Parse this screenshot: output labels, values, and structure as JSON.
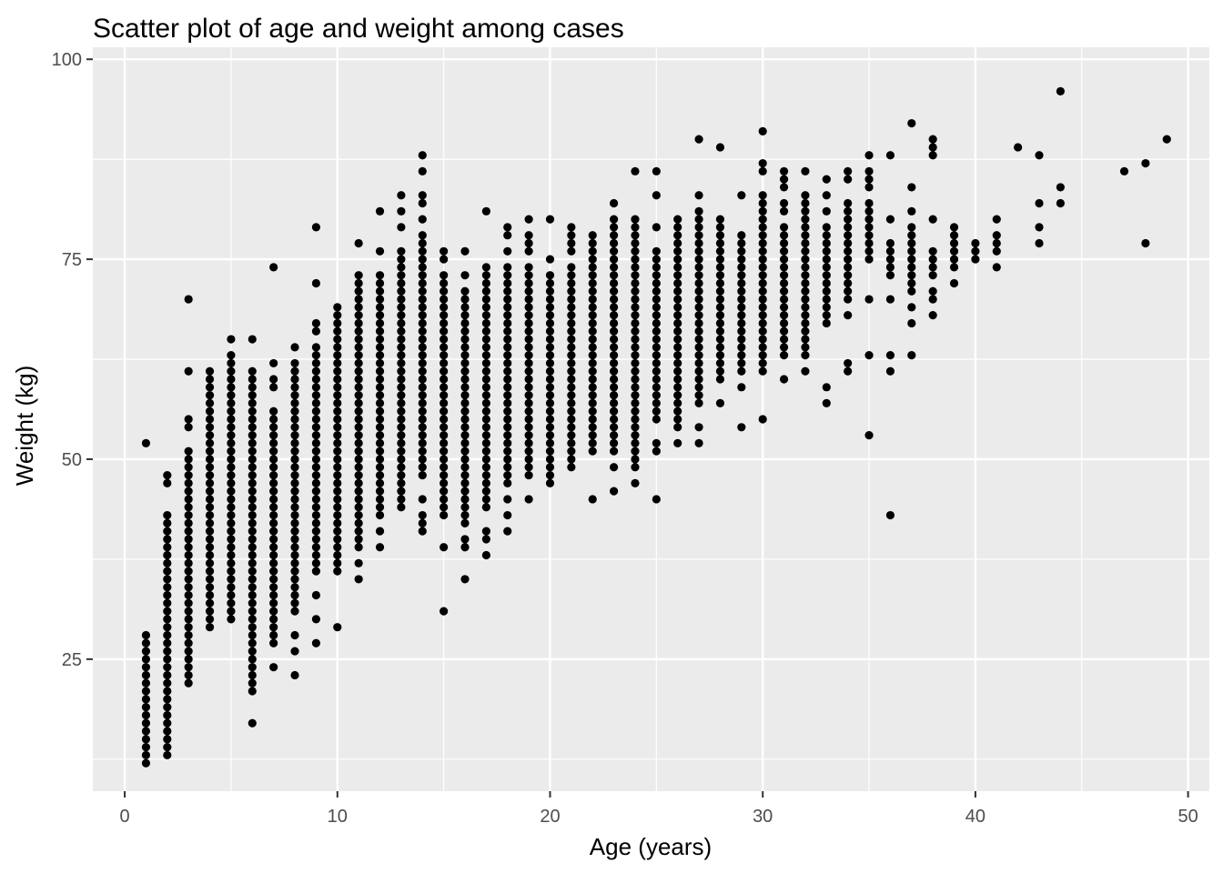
{
  "chart_data": {
    "type": "scatter",
    "title": "Scatter plot of age and weight among cases",
    "xlabel": "Age (years)",
    "ylabel": "Weight (kg)",
    "xlim": [
      -1.5,
      51
    ],
    "ylim": [
      8.5,
      101.5
    ],
    "x_ticks": [
      0,
      10,
      20,
      30,
      40,
      50
    ],
    "y_ticks": [
      25,
      50,
      75,
      100
    ],
    "x_tick_labels": [
      "0",
      "10",
      "20",
      "30",
      "40",
      "50"
    ],
    "y_tick_labels": [
      "25",
      "50",
      "75",
      "100"
    ],
    "grid": true,
    "legend": "none",
    "colors": {
      "panel": "#ebebeb",
      "grid": "#ffffff",
      "point": "#000000",
      "tick": "#4d4d4d"
    },
    "columns": [
      {
        "x": 1,
        "min": 12,
        "max": 28,
        "extra": [
          52
        ]
      },
      {
        "x": 2,
        "min": 13,
        "max": 43,
        "extra": [
          47,
          48
        ]
      },
      {
        "x": 3,
        "min": 22,
        "max": 51,
        "extra": [
          54,
          55,
          61,
          70
        ]
      },
      {
        "x": 4,
        "min": 29,
        "max": 61,
        "extra": []
      },
      {
        "x": 5,
        "min": 30,
        "max": 63,
        "extra": [
          65
        ]
      },
      {
        "x": 6,
        "min": 21,
        "max": 61,
        "extra": [
          17,
          65
        ]
      },
      {
        "x": 7,
        "min": 27,
        "max": 56,
        "extra": [
          24,
          59,
          60,
          62,
          74
        ]
      },
      {
        "x": 8,
        "min": 31,
        "max": 62,
        "extra": [
          23,
          26,
          28,
          64
        ]
      },
      {
        "x": 9,
        "min": 36,
        "max": 64,
        "extra": [
          27,
          30,
          33,
          66,
          67,
          72,
          79
        ]
      },
      {
        "x": 10,
        "min": 36,
        "max": 69,
        "extra": [
          29
        ]
      },
      {
        "x": 11,
        "min": 39,
        "max": 73,
        "extra": [
          35,
          37,
          77
        ]
      },
      {
        "x": 12,
        "min": 43,
        "max": 73,
        "extra": [
          39,
          41,
          76,
          81
        ]
      },
      {
        "x": 13,
        "min": 44,
        "max": 76,
        "extra": [
          79,
          81,
          83
        ]
      },
      {
        "x": 14,
        "min": 48,
        "max": 78,
        "extra": [
          41,
          42,
          43,
          45,
          80,
          82,
          83,
          86,
          88
        ]
      },
      {
        "x": 15,
        "min": 43,
        "max": 73,
        "extra": [
          31,
          39,
          75,
          76
        ]
      },
      {
        "x": 16,
        "min": 42,
        "max": 71,
        "extra": [
          35,
          39,
          40,
          73,
          76
        ]
      },
      {
        "x": 17,
        "min": 44,
        "max": 74,
        "extra": [
          38,
          40,
          41,
          81
        ]
      },
      {
        "x": 18,
        "min": 48,
        "max": 74,
        "extra": [
          41,
          43,
          45,
          47,
          76,
          78,
          79
        ]
      },
      {
        "x": 19,
        "min": 48,
        "max": 74,
        "extra": [
          45,
          76,
          77,
          78,
          80
        ]
      },
      {
        "x": 20,
        "min": 47,
        "max": 73,
        "extra": [
          75,
          80
        ]
      },
      {
        "x": 21,
        "min": 49,
        "max": 74,
        "extra": [
          76,
          77,
          78,
          79
        ]
      },
      {
        "x": 22,
        "min": 51,
        "max": 76,
        "extra": [
          45,
          77,
          78
        ]
      },
      {
        "x": 23,
        "min": 51,
        "max": 76,
        "extra": [
          46,
          49,
          77,
          78,
          79,
          80,
          82
        ]
      },
      {
        "x": 24,
        "min": 49,
        "max": 80,
        "extra": [
          47,
          86
        ]
      },
      {
        "x": 25,
        "min": 55,
        "max": 76,
        "extra": [
          45,
          51,
          52,
          79,
          83,
          86
        ]
      },
      {
        "x": 26,
        "min": 54,
        "max": 80,
        "extra": [
          52
        ]
      },
      {
        "x": 27,
        "min": 57,
        "max": 81,
        "extra": [
          52,
          54,
          83,
          90
        ]
      },
      {
        "x": 28,
        "min": 60,
        "max": 80,
        "extra": [
          57,
          89
        ]
      },
      {
        "x": 29,
        "min": 61,
        "max": 78,
        "extra": [
          54,
          59,
          83
        ]
      },
      {
        "x": 30,
        "min": 61,
        "max": 83,
        "extra": [
          55,
          86,
          87,
          91
        ]
      },
      {
        "x": 31,
        "min": 63,
        "max": 79,
        "extra": [
          60,
          81,
          82,
          84,
          85,
          86
        ]
      },
      {
        "x": 32,
        "min": 64,
        "max": 80,
        "extra": [
          61,
          63,
          81,
          82,
          83,
          86
        ]
      },
      {
        "x": 33,
        "min": 67,
        "max": 79,
        "extra": [
          57,
          59,
          81,
          83,
          85
        ]
      },
      {
        "x": 34,
        "min": 70,
        "max": 82,
        "extra": [
          61,
          62,
          68,
          85,
          86
        ]
      },
      {
        "x": 35,
        "min": 75,
        "max": 82,
        "extra": [
          53,
          63,
          70,
          84,
          85,
          86,
          88
        ]
      },
      {
        "x": 36,
        "min": 73,
        "max": 77,
        "extra": [
          43,
          61,
          63,
          70,
          80,
          88
        ]
      },
      {
        "x": 37,
        "min": 71,
        "max": 79,
        "extra": [
          63,
          67,
          69,
          81,
          84,
          92
        ]
      },
      {
        "x": 38,
        "min": 73,
        "max": 76,
        "extra": [
          68,
          70,
          71,
          80,
          88,
          89,
          90
        ]
      },
      {
        "x": 39,
        "min": 74,
        "max": 79,
        "extra": [
          72
        ]
      },
      {
        "x": 40,
        "min": 75,
        "max": 77,
        "extra": []
      },
      {
        "x": 41,
        "min": 76,
        "max": 78,
        "extra": [
          74,
          80
        ]
      },
      {
        "x": 42,
        "min": 89,
        "max": 89,
        "extra": []
      },
      {
        "x": 43,
        "min": 77,
        "max": 77,
        "extra": [
          79,
          82,
          88
        ]
      },
      {
        "x": 44,
        "min": 82,
        "max": 82,
        "extra": [
          84,
          96
        ]
      },
      {
        "x": 47,
        "min": 86,
        "max": 86,
        "extra": []
      },
      {
        "x": 48,
        "min": 77,
        "max": 77,
        "extra": [
          87
        ]
      },
      {
        "x": 49,
        "min": 90,
        "max": 90,
        "extra": []
      }
    ]
  }
}
